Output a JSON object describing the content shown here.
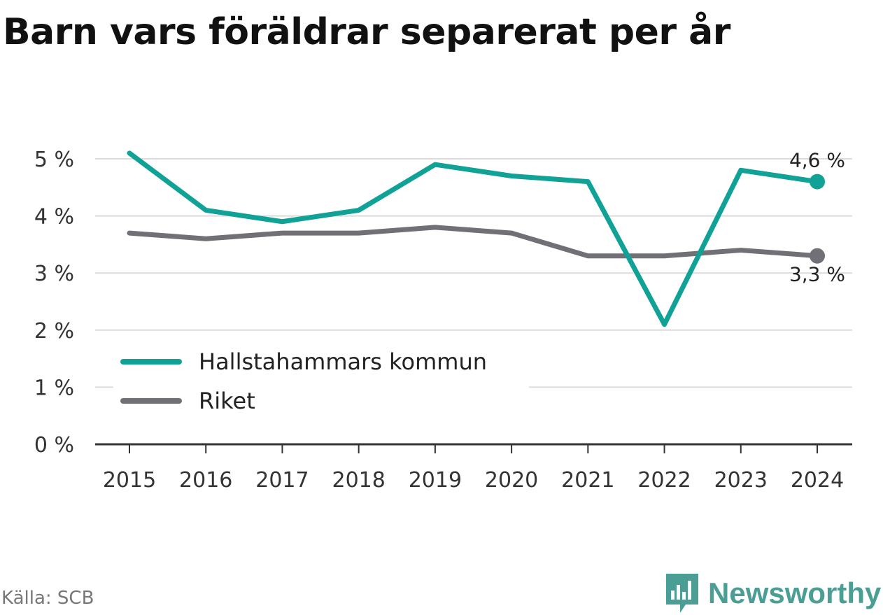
{
  "title": "Barn vars föräldrar separerat per år",
  "source": "Källa: SCB",
  "brand": {
    "name": "Newsworthy",
    "icon": "newsworthy-logo-icon",
    "color": "#4a9e94"
  },
  "chart_data": {
    "type": "line",
    "title": "Barn vars föräldrar separerat per år",
    "xlabel": "",
    "ylabel": "",
    "categories": [
      "2015",
      "2016",
      "2017",
      "2018",
      "2019",
      "2020",
      "2021",
      "2022",
      "2023",
      "2024"
    ],
    "y_ticks": [
      0,
      1,
      2,
      3,
      4,
      5
    ],
    "y_tick_labels": [
      "0 %",
      "1 %",
      "2 %",
      "3 %",
      "4 %",
      "5 %"
    ],
    "ylim": [
      0,
      5.4
    ],
    "grid": true,
    "legend_position": "bottom-left",
    "series": [
      {
        "name": "Hallstahammars kommun",
        "color": "#10a296",
        "values": [
          5.1,
          4.1,
          3.9,
          4.1,
          4.9,
          4.7,
          4.6,
          2.1,
          4.8,
          4.6
        ],
        "end_label": "4,6 %"
      },
      {
        "name": "Riket",
        "color": "#707076",
        "values": [
          3.7,
          3.6,
          3.7,
          3.7,
          3.8,
          3.7,
          3.3,
          3.3,
          3.4,
          3.3
        ],
        "end_label": "3,3 %"
      }
    ]
  }
}
